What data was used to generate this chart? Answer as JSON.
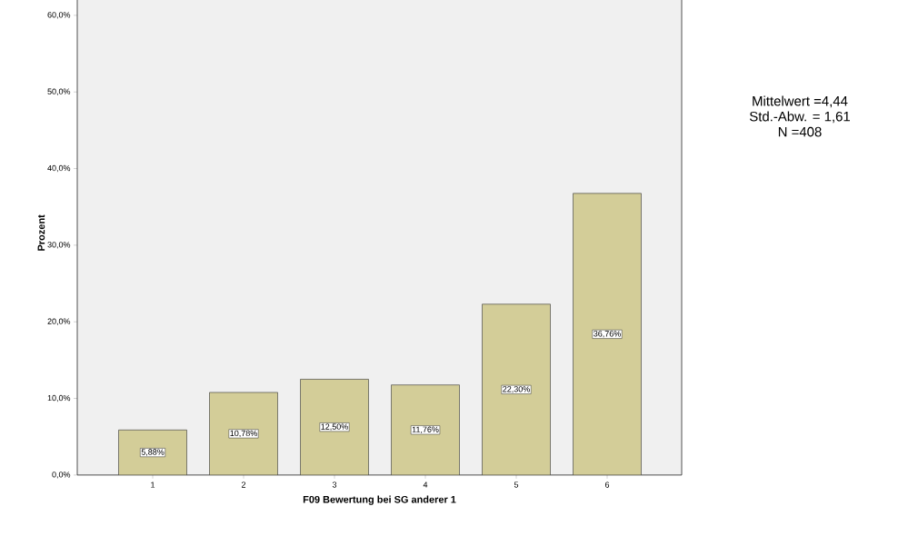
{
  "chart_data": {
    "type": "bar",
    "xlabel": "F09 Bewertung bei SG anderer 1",
    "ylabel": "Prozent",
    "categories": [
      "1",
      "2",
      "3",
      "4",
      "5",
      "6"
    ],
    "values": [
      5.88,
      10.78,
      12.5,
      11.76,
      22.3,
      36.76
    ],
    "value_labels": [
      "5,88%",
      "10,78%",
      "12,50%",
      "11,76%",
      "22,30%",
      "36,76%"
    ],
    "color": "#d3cd98",
    "ylim": [
      0,
      63.2
    ],
    "yticks": [
      {
        "value": 0,
        "label": "0,0%"
      },
      {
        "value": 10,
        "label": "10,0%"
      },
      {
        "value": 20,
        "label": "20,0%"
      },
      {
        "value": 30,
        "label": "30,0%"
      },
      {
        "value": 40,
        "label": "40,0%"
      },
      {
        "value": 50,
        "label": "50,0%"
      },
      {
        "value": 60,
        "label": "60,0%"
      }
    ],
    "annotations": [
      "Mittelwert =4,44",
      "Std.-Abw. = 1,61",
      "N =408"
    ]
  }
}
